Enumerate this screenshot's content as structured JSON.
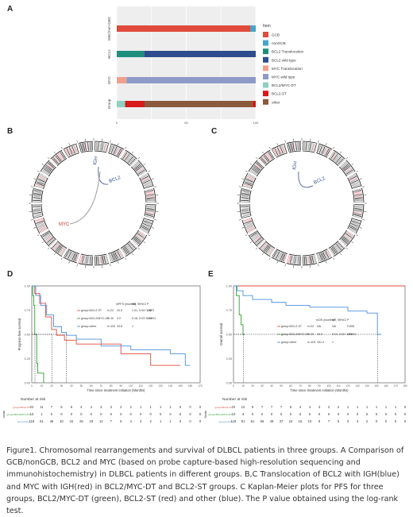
{
  "panels": {
    "A": "A",
    "B": "B",
    "C": "C",
    "D": "D",
    "E": "E"
  },
  "panelA": {
    "rows": [
      "GBC/non-GBC",
      "BCL2",
      "MYC",
      "Group"
    ],
    "ticks": [
      "0",
      "50",
      "100"
    ],
    "legend_title": "Item",
    "legend": [
      {
        "label": "GCB",
        "color": "#e04a3a"
      },
      {
        "label": "nonGCB",
        "color": "#4aa3c8"
      },
      {
        "label": "BCL2 Translocation",
        "color": "#1f8f7c"
      },
      {
        "label": "BCL2 wild type",
        "color": "#2e4d8e"
      },
      {
        "label": "MYC Translocation",
        "color": "#f0a08a"
      },
      {
        "label": "MYC wild type",
        "color": "#8e9bc8"
      },
      {
        "label": "BCL2/MYC-DT",
        "color": "#8fd0c2"
      },
      {
        "label": "BCL2-ST",
        "color": "#d7191c"
      },
      {
        "label": "other",
        "color": "#8b5a3c"
      }
    ],
    "bars": [
      {
        "row": "GBC/non-GBC",
        "segments": [
          {
            "item": "GCB",
            "value": 96
          },
          {
            "item": "nonGCB",
            "value": 4
          }
        ]
      },
      {
        "row": "BCL2",
        "segments": [
          {
            "item": "BCL2 Translocation",
            "value": 20
          },
          {
            "item": "BCL2 wild type",
            "value": 80
          }
        ]
      },
      {
        "row": "MYC",
        "segments": [
          {
            "item": "MYC Translocation",
            "value": 7
          },
          {
            "item": "MYC wild type",
            "value": 93
          }
        ]
      },
      {
        "row": "Group",
        "segments": [
          {
            "item": "BCL2/MYC-DT",
            "value": 6
          },
          {
            "item": "BCL2-ST",
            "value": 14
          },
          {
            "item": "other",
            "value": 78
          },
          {
            "item": "BCL2-ST",
            "value": 2
          }
        ]
      }
    ]
  },
  "circos": {
    "B": {
      "labels": [
        "MYC",
        "IGH",
        "BCL2"
      ]
    },
    "C": {
      "labels": [
        "IGH",
        "BCL2"
      ]
    }
  },
  "panelD": {
    "ylabel": "Progress-free survival",
    "xlabel": "Time since treatment initiation (Months)",
    "xticks": [
      "0",
      "10",
      "20",
      "30",
      "40",
      "50",
      "60",
      "70",
      "80",
      "90",
      "100",
      "110",
      "120",
      "130",
      "140",
      "150",
      "160",
      "170"
    ],
    "yticks": [
      "0.00",
      "0.25",
      "0.50",
      "0.75",
      "1.00"
    ],
    "table_header": {
      "mpfs": "mPFS (months)",
      "hr": "HR, 95%CI",
      "p": "P"
    },
    "groups": [
      {
        "label": "group=BCL2-ST",
        "n": "n=22",
        "m": "20.5",
        "hr": "1.01, 0.54~1.88",
        "p": "0.973",
        "color": "#e04a3a"
      },
      {
        "label": "group=BCL2/MYC-DT",
        "n": "n=10",
        "m": "3.2",
        "hr": "0.18, 0.03~0.96",
        "p": "<0.001",
        "color": "#2ca02c"
      },
      {
        "label": "group=other",
        "n": "n=118",
        "m": "34.8",
        "hr": "1",
        "p": "",
        "color": "#4a90d9"
      }
    ],
    "risk_title": "Number at risk",
    "strata_label": "Strata",
    "risk_rows": [
      {
        "label": "group=BCL2-ST",
        "color": "#e04a3a",
        "values": [
          "22",
          "11",
          "7",
          "5",
          "5",
          "4",
          "4",
          "3",
          "3",
          "2",
          "2",
          "1",
          "1",
          "1",
          "1",
          "0",
          "0",
          "0"
        ]
      },
      {
        "label": "group=BCL2/MYC-DT",
        "color": "#2ca02c",
        "values": [
          "10",
          "1",
          "0",
          "0",
          "0",
          "0",
          "0",
          "0",
          "0",
          "0",
          "0",
          "0",
          "0",
          "0",
          "0",
          "0",
          "0",
          "0"
        ]
      },
      {
        "label": "group=other",
        "color": "#4a90d9",
        "values": [
          "118",
          "61",
          "46",
          "40",
          "34",
          "26",
          "18",
          "12",
          "7",
          "6",
          "4",
          "3",
          "2",
          "1",
          "1",
          "0",
          "0",
          "0"
        ]
      }
    ]
  },
  "panelE": {
    "ylabel": "Overall survival",
    "xlabel": "Time since treatment initiation (Months)",
    "xticks": [
      "0",
      "10",
      "20",
      "30",
      "40",
      "50",
      "60",
      "70",
      "80",
      "90",
      "100",
      "110",
      "120",
      "130",
      "140",
      "150",
      "160",
      "170",
      "180"
    ],
    "yticks": [
      "0.00",
      "0.25",
      "0.50",
      "0.75",
      "1.00"
    ],
    "table_header": {
      "mos": "mOS (months)",
      "hr": "HR, 95%CI",
      "p": "P"
    },
    "groups": [
      {
        "label": "group=BCL2-ST",
        "n": "n=22",
        "m": "NA",
        "hr": "NA",
        "p": "0.655",
        "color": "#e04a3a"
      },
      {
        "label": "group=BCL2/MYC-DT",
        "n": "n=10",
        "m": "10.3",
        "hr": "0.14, 0.01~1.65",
        "p": "<0.001",
        "color": "#2ca02c"
      },
      {
        "label": "group=other",
        "n": "n=118",
        "m": "151.4",
        "hr": "1",
        "p": "",
        "color": "#4a90d9"
      }
    ],
    "risk_title": "Number at risk",
    "strata_label": "Strata",
    "risk_rows": [
      {
        "label": "group=BCL2-ST",
        "color": "#e04a3a",
        "values": [
          "22",
          "10",
          "9",
          "7",
          "7",
          "7",
          "6",
          "4",
          "4",
          "3",
          "2",
          "2",
          "1",
          "1",
          "1",
          "1",
          "1",
          "1",
          "0"
        ]
      },
      {
        "label": "group=BCL2/MYC-DT",
        "color": "#2ca02c",
        "values": [
          "10",
          "3",
          "0",
          "0",
          "0",
          "0",
          "0",
          "0",
          "0",
          "0",
          "0",
          "0",
          "0",
          "0",
          "0",
          "0",
          "0",
          "0",
          "0"
        ]
      },
      {
        "label": "group=other",
        "color": "#4a90d9",
        "values": [
          "118",
          "81",
          "61",
          "56",
          "49",
          "37",
          "24",
          "15",
          "10",
          "9",
          "7",
          "5",
          "3",
          "3",
          "2",
          "0",
          "0",
          "0",
          "0"
        ]
      }
    ]
  },
  "caption": "Figure1. Chromosomal rearrangements and survival of DLBCL patients in three groups. A Comparison of GCB/nonGCB, BCL2 and MYC (based on probe capture-based high-resolution sequencing and immunohistochemistry) in DLBCL patients in different groups. B,C Translocation of BCL2 with IGH(blue) and MYC with IGH(red) in BCL2/MYC-DT and BCL2-ST groups. C Kaplan-Meier plots for PFS for three groups, BCL2/MYC-DT (green), BCL2-ST (red) and other (blue). The P value obtained using the log-rank test."
}
